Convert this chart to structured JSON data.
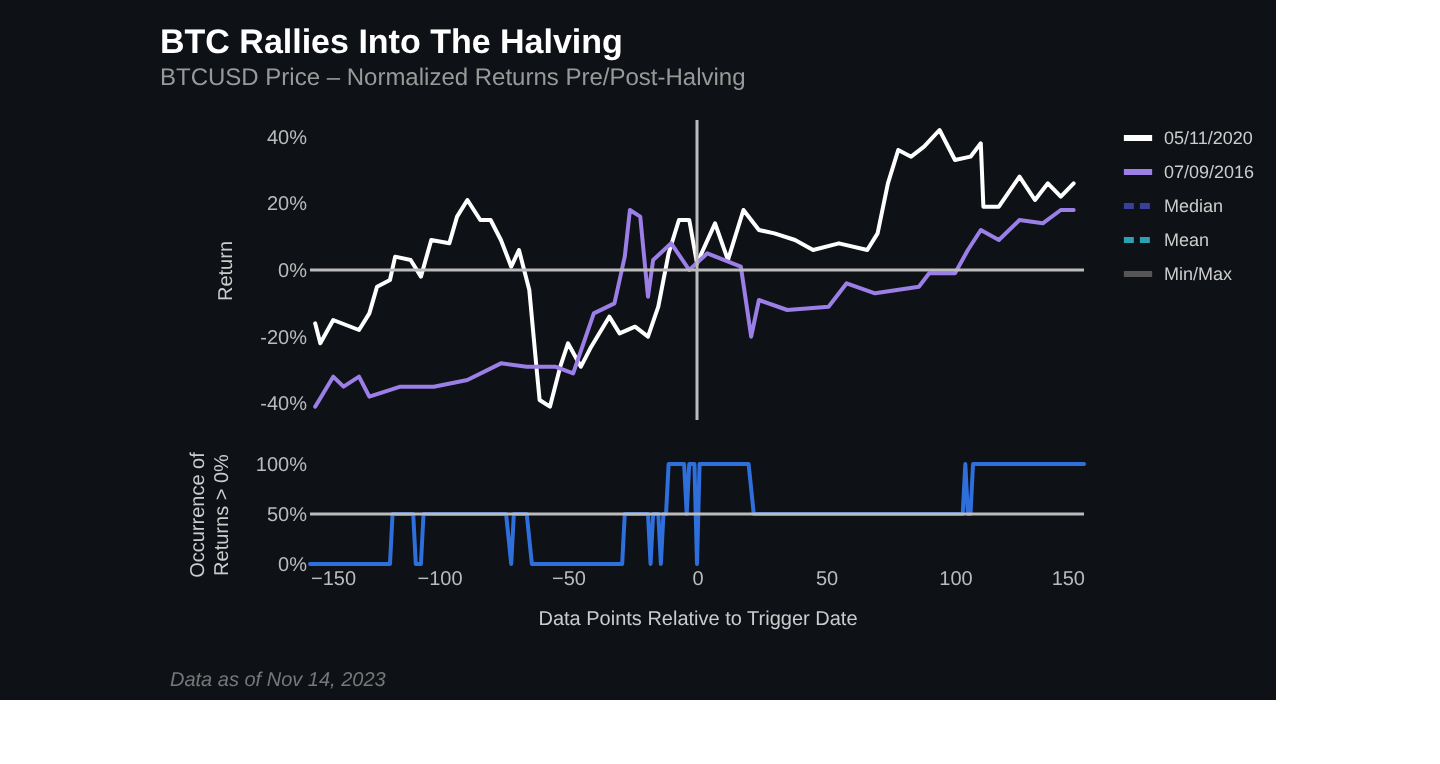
{
  "chart_data": [
    {
      "type": "line",
      "title": "BTC Rallies Into The Halving",
      "subtitle": "BTCUSD Price – Normalized Returns Pre/Post-Halving",
      "ylabel": "Return",
      "xlim": [
        -150,
        150
      ],
      "ylim": [
        -45,
        45
      ],
      "yticks": [
        {
          "value": -40,
          "label": "-40%"
        },
        {
          "value": -20,
          "label": "-20%"
        },
        {
          "value": 0,
          "label": "0%"
        },
        {
          "value": 20,
          "label": "20%"
        },
        {
          "value": 40,
          "label": "40%"
        }
      ],
      "tick_labels": "y",
      "grid": false,
      "legend": "top right",
      "ref_lines": [
        {
          "axis": "y",
          "value": 0,
          "color": "#bbbbbb"
        },
        {
          "axis": "x",
          "value": 0,
          "color": "#bbbbbb"
        }
      ],
      "series": [
        {
          "name": "05/11/2020",
          "color": "#ffffff",
          "x": [
            -148,
            -146,
            -141,
            -131,
            -127,
            -124,
            -119,
            -117,
            -111,
            -107,
            -103,
            -96,
            -93,
            -89,
            -84,
            -80,
            -76,
            -72,
            -69,
            -65,
            -62,
            -61,
            -57,
            -55,
            -53,
            -50,
            -45,
            -41,
            -34,
            -30,
            -24,
            -19,
            -15,
            -11,
            -7,
            -3,
            0,
            7,
            12,
            18,
            24,
            30,
            38,
            45,
            55,
            66,
            70,
            74,
            78,
            83,
            88,
            94,
            100,
            106,
            110,
            111,
            117,
            125,
            131,
            136,
            141,
            146
          ],
          "values": [
            -16,
            -22,
            -15,
            -18,
            -13,
            -5,
            -3,
            4,
            3,
            -2,
            9,
            8,
            16,
            21,
            15,
            15,
            9,
            1,
            6,
            -6,
            -31,
            -39,
            -41,
            -35,
            -29,
            -22,
            -29,
            -23,
            -14,
            -19,
            -17,
            -20,
            -11,
            5,
            15,
            15,
            2,
            14,
            3,
            18,
            12,
            11,
            9,
            6,
            8,
            6,
            11,
            26,
            36,
            34,
            37,
            42,
            33,
            34,
            38,
            19,
            19,
            28,
            21,
            26,
            22,
            26
          ]
        },
        {
          "name": "07/09/2016",
          "color": "#9b7fe6",
          "x": [
            -148,
            -141,
            -137,
            -131,
            -127,
            -115,
            -102,
            -89,
            -76,
            -66,
            -55,
            -48,
            -40,
            -32,
            -28,
            -26,
            -22,
            -19,
            -17,
            -10,
            -3,
            4,
            17,
            21,
            24,
            35,
            51,
            58,
            69,
            86,
            90,
            100,
            105,
            110,
            117,
            125,
            134,
            141,
            146
          ],
          "values": [
            -41,
            -32,
            -35,
            -32,
            -38,
            -35,
            -35,
            -33,
            -28,
            -29,
            -29,
            -31,
            -13,
            -10,
            4,
            18,
            16,
            -8,
            3,
            8,
            0,
            5,
            1,
            -20,
            -9,
            -12,
            -11,
            -4,
            -7,
            -5,
            -1,
            -1,
            6,
            12,
            9,
            15,
            14,
            18,
            18
          ]
        },
        {
          "name": "Median",
          "color": "#3a3f9a",
          "line_style": "dashed"
        },
        {
          "name": "Mean",
          "color": "#2aa0b0",
          "line_style": "dashed"
        },
        {
          "name": "Min/Max",
          "color": "#555555"
        }
      ]
    },
    {
      "type": "line",
      "xlabel": "Data Points Relative to Trigger Date",
      "ylabel": "Occurrence of Returns > 0%",
      "xlim": [
        -150,
        150
      ],
      "ylim": [
        0,
        100
      ],
      "xticks": [
        {
          "value": -150,
          "label": "−150"
        },
        {
          "value": -100,
          "label": "−100"
        },
        {
          "value": -50,
          "label": "−50"
        },
        0,
        50,
        100,
        150
      ],
      "yticks": [
        {
          "value": 0,
          "label": "0%"
        },
        {
          "value": 50,
          "label": "50%"
        },
        {
          "value": 100,
          "label": "100%"
        }
      ],
      "grid": false,
      "ref_lines": [
        {
          "axis": "y",
          "value": 50,
          "color": "#bbbbbb"
        }
      ],
      "annotations": [
        "Data as of Nov 14, 2023"
      ],
      "series": [
        {
          "color": "#2f6fdc",
          "x": [
            -150,
            -119,
            -118,
            -110,
            -109,
            -107,
            -106,
            -74,
            -72,
            -71,
            -66,
            -64,
            -29,
            -28,
            -19,
            -18,
            -17,
            -15,
            -14,
            -13,
            -12,
            -11,
            -5,
            -4,
            -3,
            -1,
            0,
            1,
            20,
            22,
            103,
            104,
            105,
            106,
            107,
            150
          ],
          "values": [
            0,
            0,
            50,
            50,
            0,
            0,
            50,
            50,
            0,
            50,
            50,
            0,
            0,
            50,
            50,
            0,
            50,
            50,
            0,
            50,
            50,
            100,
            100,
            50,
            100,
            100,
            0,
            100,
            100,
            50,
            50,
            100,
            50,
            50,
            100,
            100
          ]
        }
      ]
    }
  ]
}
